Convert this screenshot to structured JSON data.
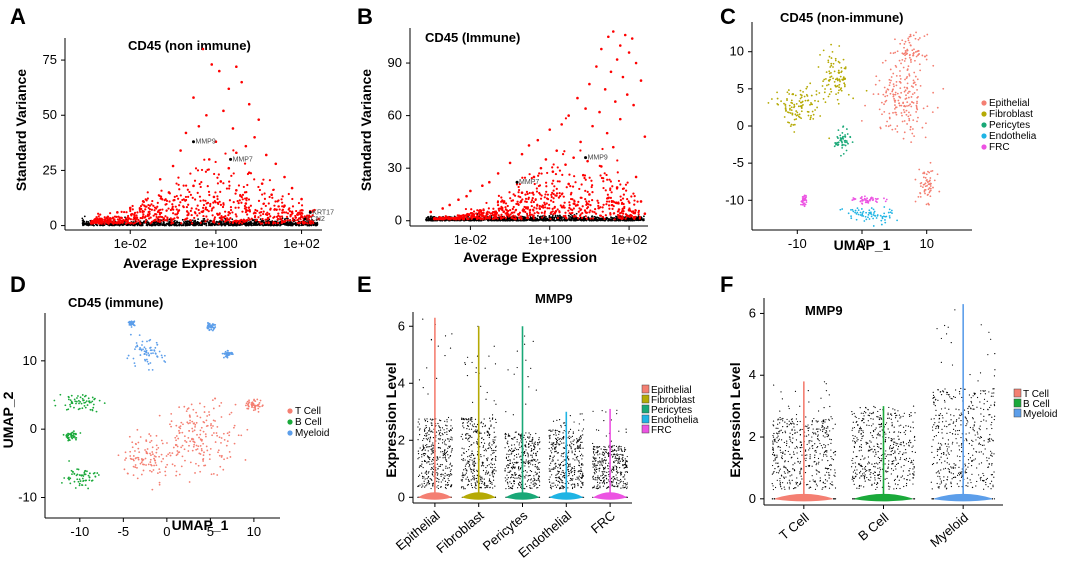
{
  "panels": {
    "A": {
      "letter": "A",
      "title": "CD45 (non immune)"
    },
    "B": {
      "letter": "B",
      "title": "CD45 (Immune)"
    },
    "C": {
      "letter": "C",
      "title": "CD45 (non-immune)"
    },
    "D": {
      "letter": "D",
      "title": "CD45 (immune)"
    },
    "E": {
      "letter": "E",
      "title": "MMP9"
    },
    "F": {
      "letter": "F",
      "title": "MMP9"
    }
  },
  "chart_data": [
    {
      "id": "A",
      "type": "scatter",
      "title": "CD45 (non immune)",
      "xlabel": "Average Expression",
      "ylabel": "Standard Variance",
      "xscale": "log",
      "xlim": [
        0.0003,
        300
      ],
      "ylim": [
        -2,
        85
      ],
      "xticks": [
        "1e-02",
        "1e+100",
        "1e+02"
      ],
      "yticks": [
        0,
        25,
        50,
        75
      ],
      "highlight_color": "#ff0000",
      "base_color": "#000000",
      "points": [
        [
          0.5,
          80
        ],
        [
          0.8,
          73
        ],
        [
          3,
          72
        ],
        [
          1.2,
          70
        ],
        [
          4,
          65
        ],
        [
          2,
          62
        ],
        [
          0.3,
          58
        ],
        [
          6,
          55
        ],
        [
          1.5,
          52
        ],
        [
          0.6,
          50
        ],
        [
          10,
          48
        ],
        [
          0.4,
          45
        ],
        [
          2.5,
          44
        ],
        [
          0.2,
          42
        ],
        [
          8,
          40
        ],
        [
          1,
          38
        ],
        [
          5,
          36
        ],
        [
          0.15,
          34
        ],
        [
          3,
          33
        ],
        [
          15,
          32
        ],
        [
          0.7,
          30
        ],
        [
          25,
          28
        ],
        [
          0.1,
          27
        ],
        [
          2,
          26
        ],
        [
          6,
          24
        ],
        [
          40,
          22
        ],
        [
          0.05,
          21
        ],
        [
          1.3,
          20
        ],
        [
          12,
          19
        ],
        [
          0.3,
          18
        ],
        [
          60,
          17
        ],
        [
          3,
          16
        ],
        [
          0.08,
          15
        ],
        [
          20,
          14
        ],
        [
          0.9,
          13
        ],
        [
          100,
          12
        ],
        [
          0.02,
          11
        ],
        [
          5,
          10
        ],
        [
          40,
          9
        ],
        [
          0.01,
          8
        ],
        [
          200,
          7
        ],
        [
          0.005,
          6
        ],
        [
          2,
          6
        ],
        [
          80,
          5
        ],
        [
          0.003,
          4
        ],
        [
          150,
          4
        ],
        [
          0.002,
          3
        ],
        [
          250,
          3
        ]
      ],
      "annotations": [
        {
          "text": "MMP9",
          "x": 0.3,
          "y": 38
        },
        {
          "text": "MMP7",
          "x": 2.2,
          "y": 30
        },
        {
          "text": "KRT17",
          "x": 160,
          "y": 6
        },
        {
          "text": "LCN2",
          "x": 120,
          "y": 3
        }
      ]
    },
    {
      "id": "B",
      "type": "scatter",
      "title": "CD45 (Immune)",
      "xlabel": "Average Expression",
      "ylabel": "Standard Variance",
      "xscale": "log",
      "xlim": [
        0.0003,
        300
      ],
      "ylim": [
        -3,
        110
      ],
      "xticks": [
        "1e-02",
        "1e+100",
        "1e+02"
      ],
      "yticks": [
        0,
        30,
        60,
        90
      ],
      "highlight_color": "#ff0000",
      "base_color": "#000000",
      "points": [
        [
          40,
          108
        ],
        [
          80,
          106
        ],
        [
          30,
          105
        ],
        [
          120,
          104
        ],
        [
          60,
          100
        ],
        [
          20,
          98
        ],
        [
          100,
          96
        ],
        [
          50,
          92
        ],
        [
          150,
          90
        ],
        [
          15,
          88
        ],
        [
          35,
          85
        ],
        [
          70,
          82
        ],
        [
          200,
          80
        ],
        [
          10,
          78
        ],
        [
          25,
          75
        ],
        [
          90,
          72
        ],
        [
          5,
          70
        ],
        [
          45,
          68
        ],
        [
          130,
          66
        ],
        [
          8,
          64
        ],
        [
          18,
          62
        ],
        [
          3,
          60
        ],
        [
          60,
          58
        ],
        [
          2,
          55
        ],
        [
          12,
          54
        ],
        [
          1,
          52
        ],
        [
          28,
          50
        ],
        [
          250,
          48
        ],
        [
          0.5,
          46
        ],
        [
          6,
          45
        ],
        [
          0.3,
          43
        ],
        [
          40,
          42
        ],
        [
          1.5,
          40
        ],
        [
          0.2,
          38
        ],
        [
          4,
          36
        ],
        [
          0.8,
          35
        ],
        [
          9,
          34
        ],
        [
          0.1,
          33
        ],
        [
          2.5,
          32
        ],
        [
          20,
          31
        ],
        [
          0.6,
          30
        ],
        [
          1.2,
          28
        ],
        [
          0.05,
          27
        ],
        [
          7,
          26
        ],
        [
          0.4,
          25
        ],
        [
          150,
          25
        ],
        [
          0.03,
          22
        ],
        [
          3,
          21
        ],
        [
          0.02,
          20
        ],
        [
          50,
          19
        ],
        [
          0.01,
          17
        ],
        [
          0.2,
          16
        ],
        [
          10,
          15
        ],
        [
          0.008,
          14
        ],
        [
          30,
          13
        ],
        [
          0.005,
          12
        ],
        [
          200,
          11
        ],
        [
          0.003,
          9
        ],
        [
          5,
          9
        ],
        [
          0.002,
          7
        ],
        [
          100,
          6
        ],
        [
          0.001,
          5
        ],
        [
          250,
          4
        ]
      ],
      "annotations": [
        {
          "text": "MMP9",
          "x": 8,
          "y": 36
        },
        {
          "text": "MMP7",
          "x": 0.15,
          "y": 22
        }
      ]
    },
    {
      "id": "C",
      "type": "scatter",
      "title": "CD45 (non-immune)",
      "xlabel": "UMAP_1",
      "ylabel": "",
      "xlim": [
        -17,
        17
      ],
      "ylim": [
        -14,
        14
      ],
      "xticks": [
        -10,
        0,
        10
      ],
      "yticks": [
        10,
        5,
        0,
        -5,
        -10
      ],
      "legend": [
        {
          "label": "Epithelial",
          "color": "#f47f72"
        },
        {
          "label": "Fibroblast",
          "color": "#b5aa05"
        },
        {
          "label": "Pericytes",
          "color": "#19a877"
        },
        {
          "label": "Endothelia",
          "color": "#1fb4e4"
        },
        {
          "label": "FRC",
          "color": "#ec53e2"
        }
      ],
      "clusters": [
        {
          "group": 0,
          "cx": 6,
          "cy": 3.5,
          "sx": 4,
          "sy": 4.5
        },
        {
          "group": 0,
          "cx": 7.5,
          "cy": 10,
          "sx": 2,
          "sy": 2
        },
        {
          "group": 0,
          "cx": 10,
          "cy": -8,
          "sx": 1.3,
          "sy": 2
        },
        {
          "group": 1,
          "cx": -10,
          "cy": 2.5,
          "sx": 3.5,
          "sy": 2.5
        },
        {
          "group": 1,
          "cx": -4,
          "cy": 6.5,
          "sx": 2,
          "sy": 3.5
        },
        {
          "group": 2,
          "cx": -3,
          "cy": -2,
          "sx": 1.1,
          "sy": 1.3
        },
        {
          "group": 3,
          "cx": 1,
          "cy": -12,
          "sx": 3.5,
          "sy": 1.1
        },
        {
          "group": 4,
          "cx": -9,
          "cy": -10,
          "sx": 0.4,
          "sy": 0.6
        },
        {
          "group": 4,
          "cx": 1,
          "cy": -10,
          "sx": 2,
          "sy": 0.4
        }
      ]
    },
    {
      "id": "D",
      "type": "scatter",
      "title": "CD45 (immune)",
      "xlabel": "UMAP_1",
      "ylabel": "UMAP_2",
      "xlim": [
        -14,
        13
      ],
      "ylim": [
        -13,
        17
      ],
      "xticks": [
        -10,
        -5,
        0,
        5,
        10
      ],
      "yticks": [
        10,
        0,
        -10
      ],
      "legend": [
        {
          "label": "T Cell",
          "color": "#f47f72"
        },
        {
          "label": "B Cell",
          "color": "#1aa93a"
        },
        {
          "label": "Myeloid",
          "color": "#5c9eea"
        }
      ],
      "clusters": [
        {
          "group": 0,
          "cx": 4,
          "cy": -1,
          "sx": 4,
          "sy": 4.5
        },
        {
          "group": 0,
          "cx": -2,
          "cy": -4,
          "sx": 3,
          "sy": 3
        },
        {
          "group": 0,
          "cx": 10,
          "cy": 3.5,
          "sx": 0.9,
          "sy": 0.8
        },
        {
          "group": 1,
          "cx": -10,
          "cy": 4,
          "sx": 2.2,
          "sy": 1.2
        },
        {
          "group": 1,
          "cx": -10,
          "cy": -7,
          "sx": 1.8,
          "sy": 1.4
        },
        {
          "group": 1,
          "cx": -11,
          "cy": -1,
          "sx": 0.8,
          "sy": 0.6
        },
        {
          "group": 2,
          "cx": -2.5,
          "cy": 11,
          "sx": 2,
          "sy": 1.8
        },
        {
          "group": 2,
          "cx": 5,
          "cy": 15,
          "sx": 0.5,
          "sy": 0.4
        },
        {
          "group": 2,
          "cx": 7,
          "cy": 11,
          "sx": 0.5,
          "sy": 0.4
        },
        {
          "group": 2,
          "cx": -4,
          "cy": 15.5,
          "sx": 0.3,
          "sy": 0.3
        }
      ]
    },
    {
      "id": "E",
      "type": "violin",
      "title": "MMP9",
      "xlabel": "",
      "ylabel": "Expression Level",
      "ylim": [
        -0.2,
        6.5
      ],
      "yticks": [
        0,
        2,
        4,
        6
      ],
      "categories": [
        "Epithelial",
        "Fibroblast",
        "Pericytes",
        "Endothelial",
        "FRC"
      ],
      "max_values": [
        6.3,
        6.0,
        6.0,
        3.0,
        3.1
      ],
      "dense_upper": [
        2.8,
        2.8,
        2.3,
        2.4,
        1.8
      ],
      "colors": [
        "#f47f72",
        "#b5aa05",
        "#19a877",
        "#1fb4e4",
        "#ec53e2"
      ],
      "legend": [
        "Epithelial",
        "Fibroblast",
        "Pericytes",
        "Endothelia",
        "FRC"
      ]
    },
    {
      "id": "F",
      "type": "violin",
      "title": "MMP9",
      "xlabel": "",
      "ylabel": "Expression Level",
      "ylim": [
        -0.2,
        6.5
      ],
      "yticks": [
        0,
        2,
        4,
        6
      ],
      "categories": [
        "T Cell",
        "B Cell",
        "Myeloid"
      ],
      "max_values": [
        3.8,
        3.0,
        6.3
      ],
      "dense_upper": [
        2.6,
        2.8,
        3.6
      ],
      "colors": [
        "#f47f72",
        "#1aa93a",
        "#5c9eea"
      ],
      "legend": [
        "T Cell",
        "B Cell",
        "Myeloid"
      ]
    }
  ]
}
